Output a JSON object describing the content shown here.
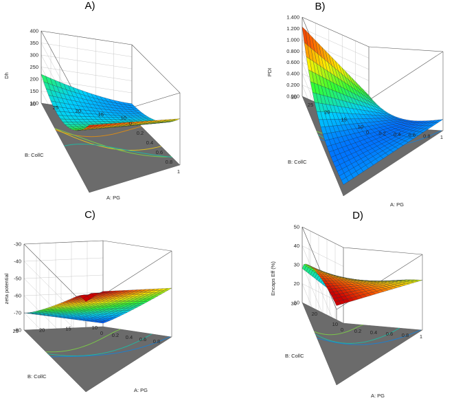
{
  "chart_data": [
    {
      "type": "surface3d",
      "panel": "A)",
      "title": "",
      "zlabel": "Dh",
      "xlabel": "A: PG",
      "ylabel": "B: CollC",
      "x_ticks": [
        "0",
        "0.2",
        "0.4",
        "0.6",
        "0.8",
        "1"
      ],
      "y_ticks": [
        "10",
        "15",
        "20",
        "25",
        "30"
      ],
      "z_ticks": [
        "100",
        "150",
        "200",
        "250",
        "300",
        "350",
        "400"
      ],
      "xlim": [
        0,
        1
      ],
      "ylim": [
        10,
        30
      ],
      "zlim": [
        100,
        400
      ],
      "color_scale": [
        "#0033ff",
        "#00cfff",
        "#33ff33",
        "#ffee00",
        "#ff6600",
        "#cc0000"
      ],
      "surface_range": [
        120,
        390
      ]
    },
    {
      "type": "surface3d",
      "panel": "B)",
      "title": "",
      "zlabel": "PDI",
      "xlabel": "A: PG",
      "ylabel": "B: CollC",
      "x_ticks": [
        "0",
        "0.2",
        "0.4",
        "0.6",
        "0.8",
        "1"
      ],
      "y_ticks": [
        "10",
        "15",
        "20",
        "25",
        "30"
      ],
      "z_ticks": [
        "0.000",
        "0.200",
        "0.400",
        "0.600",
        "0.800",
        "1.000",
        "1.200",
        "1.400"
      ],
      "xlim": [
        0,
        1
      ],
      "ylim": [
        10,
        30
      ],
      "zlim": [
        0,
        1.4
      ],
      "color_scale": [
        "#0033ff",
        "#00cfff",
        "#33ff33",
        "#ffee00",
        "#ff6600",
        "#cc0000"
      ],
      "surface_range": [
        0.05,
        1.3
      ]
    },
    {
      "type": "surface3d",
      "panel": "C)",
      "title": "",
      "zlabel": "zeta potential",
      "xlabel": "A: PG",
      "ylabel": "B: CollC",
      "x_ticks": [
        "0",
        "0.2",
        "0.4",
        "0.6",
        "0.8"
      ],
      "y_ticks": [
        "10",
        "15",
        "20",
        "25"
      ],
      "z_ticks": [
        "-80",
        "-70",
        "-60",
        "-50",
        "-40",
        "-30"
      ],
      "xlim": [
        0,
        1
      ],
      "ylim": [
        10,
        30
      ],
      "zlim": [
        -80,
        -30
      ],
      "color_scale": [
        "#0033ff",
        "#00cfff",
        "#33ff33",
        "#ffee00",
        "#ff6600",
        "#cc0000"
      ],
      "surface_range": [
        -80,
        -30
      ]
    },
    {
      "type": "surface3d",
      "panel": "D)",
      "title": "",
      "zlabel": "Encaps Eff (%)",
      "xlabel": "A: PG",
      "ylabel": "B: CollC",
      "x_ticks": [
        "0",
        "0.2",
        "0.4",
        "0.6",
        "0.8",
        "1"
      ],
      "y_ticks": [
        "10",
        "20",
        "30"
      ],
      "z_ticks": [
        "10",
        "20",
        "30",
        "40",
        "50"
      ],
      "xlim": [
        0,
        1
      ],
      "ylim": [
        10,
        30
      ],
      "zlim": [
        10,
        50
      ],
      "color_scale": [
        "#0033ff",
        "#00cfff",
        "#33ff33",
        "#ffee00",
        "#ff6600",
        "#cc0000"
      ],
      "surface_range": [
        20,
        50
      ]
    }
  ]
}
